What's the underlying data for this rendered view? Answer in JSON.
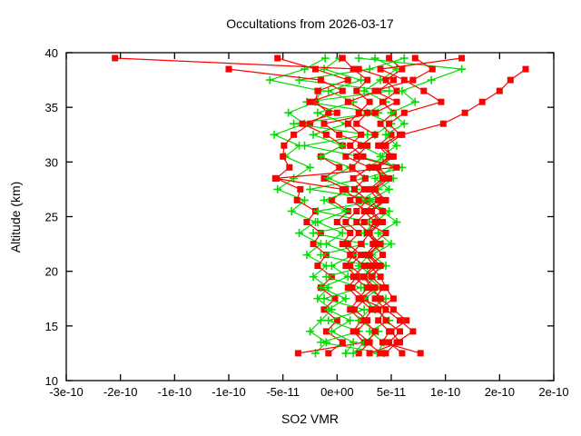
{
  "chart_data": {
    "type": "line",
    "title": "Occultations from 2026-03-17",
    "xlabel": "SO2 VMR",
    "ylabel": "Altitude (km)",
    "xlim": [
      -2.5e-10,
      2e-10
    ],
    "ylim": [
      10,
      40
    ],
    "grid": false,
    "legend": "none",
    "x_ticks": [
      {
        "value": -2.5e-10,
        "label": "-3e-10"
      },
      {
        "value": -2e-10,
        "label": "-2e-10"
      },
      {
        "value": -1.5e-10,
        "label": "-1e-10"
      },
      {
        "value": -1e-10,
        "label": "-1e-10"
      },
      {
        "value": -5e-11,
        "label": "-5e-11"
      },
      {
        "value": 0,
        "label": "0e+00"
      },
      {
        "value": 5e-11,
        "label": "5e-11"
      },
      {
        "value": 1e-10,
        "label": "1e-10"
      },
      {
        "value": 1.5e-10,
        "label": "2e-10"
      },
      {
        "value": 2e-10,
        "label": "2e-10"
      }
    ],
    "y_ticks": [
      10,
      15,
      20,
      25,
      30,
      35,
      40
    ],
    "colors": {
      "red": "#ff0000",
      "green": "#00dd00"
    },
    "marker_styles": {
      "red": "filled-square",
      "green": "plus"
    },
    "value_scale": 1e-12,
    "altitudes_km": [
      39.5,
      38.5,
      37.5,
      36.5,
      35.5,
      34.5,
      33.5,
      32.5,
      31.5,
      30.5,
      29.5,
      28.5,
      27.5,
      26.5,
      25.5,
      24.5,
      23.5,
      22.5,
      21.5,
      20.5,
      19.5,
      18.5,
      17.5,
      16.5,
      15.5,
      14.5,
      13.5,
      12.5
    ],
    "series": [
      {
        "name": "occ-green-1",
        "color_key": "green",
        "marker": "plus",
        "values": [
          -11,
          -30,
          -62,
          -15,
          -20,
          -45,
          -30,
          -58,
          -35,
          -48,
          -25,
          -40,
          -55,
          -30,
          -42,
          -20,
          -35,
          -15,
          -28,
          -10,
          -22,
          -8,
          -18,
          -5,
          -15,
          -25,
          -10,
          -20
        ]
      },
      {
        "name": "occ-red-5",
        "color_key": "red",
        "marker": "square",
        "values": [
          -55,
          -20,
          10,
          -18,
          -20,
          -8,
          -25,
          -40,
          -49,
          -50,
          -44,
          -56,
          -34,
          -37,
          -20,
          -28,
          -15,
          -22,
          -10,
          -18,
          -5,
          -15,
          -2,
          -12,
          0,
          -10,
          5,
          -8
        ]
      },
      {
        "name": "occ-green-4",
        "color_key": "green",
        "marker": "plus",
        "values": [
          62,
          30,
          -35,
          48,
          -28,
          38,
          -40,
          28,
          -30,
          20,
          60,
          25,
          -25,
          40,
          -18,
          30,
          -22,
          25,
          -15,
          28,
          -10,
          22,
          -12,
          25,
          -8,
          20,
          -15,
          43
        ]
      },
      {
        "name": "occ-red-3",
        "color_key": "red",
        "marker": "square",
        "values": [
          null,
          -100,
          -15,
          5,
          -25,
          0,
          -32,
          -10,
          5,
          -15,
          2,
          -12,
          8,
          -5,
          10,
          0,
          12,
          5,
          15,
          8,
          18,
          10,
          20,
          12,
          22,
          15,
          25,
          -36
        ]
      },
      {
        "name": "occ-green-3",
        "color_key": "green",
        "marker": "plus",
        "values": [
          2,
          -12,
          22,
          -8,
          15,
          -18,
          8,
          -22,
          5,
          -15,
          12,
          -8,
          18,
          -12,
          8,
          -18,
          5,
          -10,
          15,
          -5,
          10,
          -15,
          8,
          -8,
          12,
          -5,
          15,
          8
        ]
      },
      {
        "name": "occ-red-7",
        "color_key": "red",
        "marker": "square",
        "values": [
          5,
          15,
          28,
          18,
          30,
          20,
          10,
          22,
          12,
          24,
          14,
          26,
          16,
          28,
          18,
          8,
          20,
          10,
          22,
          12,
          24,
          14,
          26,
          16,
          28,
          18,
          30,
          20
        ]
      },
      {
        "name": "occ-green-5",
        "color_key": "green",
        "marker": "plus",
        "values": [
          35,
          55,
          40,
          25,
          45,
          28,
          50,
          35,
          22,
          42,
          30,
          52,
          38,
          22,
          48,
          35,
          25,
          42,
          30,
          20,
          35,
          25,
          45,
          30,
          20,
          38,
          25,
          15
        ]
      },
      {
        "name": "occ-red-6",
        "color_key": "red",
        "marker": "square",
        "values": [
          48,
          60,
          45,
          55,
          42,
          52,
          40,
          50,
          38,
          48,
          35,
          45,
          33,
          43,
          30,
          40,
          28,
          36,
          26,
          34,
          24,
          32,
          40,
          52,
          64,
          50,
          58,
          30
        ]
      },
      {
        "name": "occ-green-2",
        "color_key": "green",
        "marker": "plus",
        "values": [
          20,
          115,
          87,
          60,
          72,
          50,
          62,
          45,
          55,
          40,
          52,
          35,
          48,
          30,
          42,
          55,
          38,
          50,
          32,
          45,
          28,
          40,
          25,
          35,
          48,
          30,
          43,
          37
        ]
      },
      {
        "name": "occ-red-8",
        "color_key": "red",
        "marker": "square",
        "values": [
          72,
          88,
          70,
          35,
          55,
          35,
          -12,
          2,
          28,
          18,
          55,
          -57,
          5,
          20,
          42,
          25,
          45,
          33,
          42,
          30,
          40,
          45,
          52,
          38,
          45,
          58,
          48,
          60
        ]
      },
      {
        "name": "occ-red-1",
        "color_key": "red",
        "marker": "square",
        "values": [
          -205,
          20,
          52,
          38,
          10,
          28,
          18,
          35,
          22,
          8,
          30,
          15,
          25,
          12,
          28,
          18,
          30,
          22,
          12,
          25,
          15,
          28,
          20,
          32,
          25,
          35,
          28,
          40
        ]
      },
      {
        "name": "occ-red-2",
        "color_key": "red",
        "marker": "square",
        "values": [
          null,
          174,
          160,
          150,
          134,
          118,
          98,
          60,
          45,
          50,
          35,
          42,
          30,
          38,
          25,
          35,
          28,
          38,
          30,
          40,
          32,
          42,
          35,
          45,
          38,
          48,
          42,
          77
        ]
      },
      {
        "name": "occ-red-4",
        "color_key": "red",
        "marker": "square",
        "values": [
          115,
          40,
          62,
          80,
          96,
          62,
          48,
          58,
          40,
          52,
          38,
          48,
          35,
          45,
          32,
          42,
          30,
          40,
          28,
          38,
          25,
          35,
          22,
          45,
          58,
          70,
          55,
          45
        ]
      }
    ]
  }
}
